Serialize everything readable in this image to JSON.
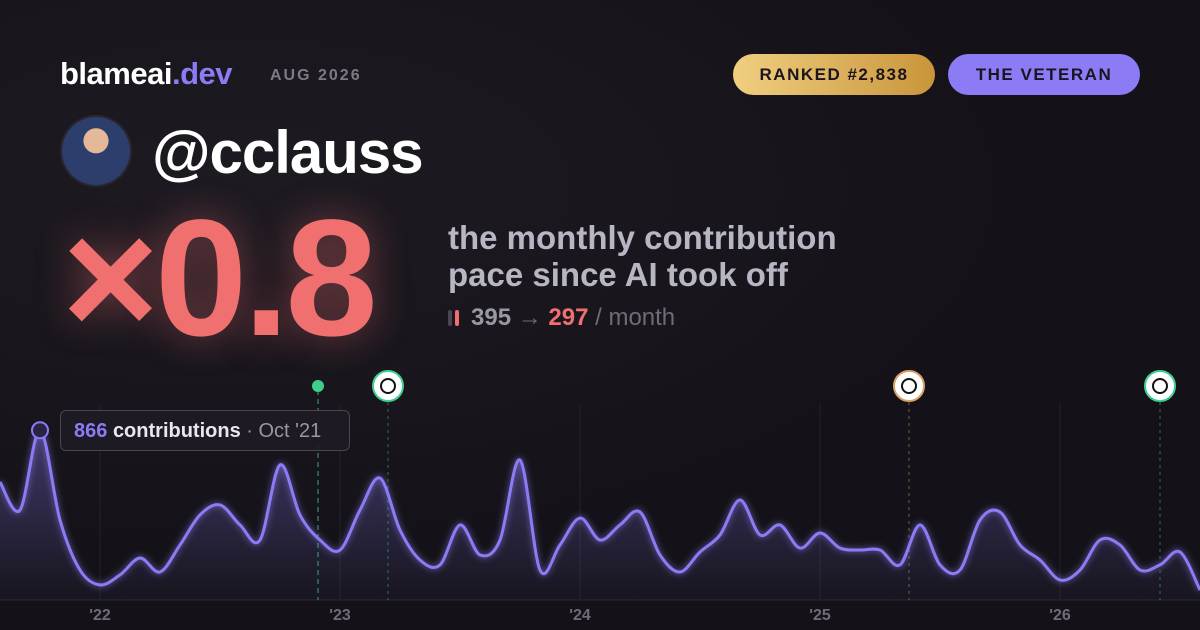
{
  "header": {
    "brand": "blameai",
    "brand_tld": ".dev",
    "date": "AUG 2026",
    "rank_badge": "RANKED #2,838",
    "title_badge": "THE VETERAN"
  },
  "profile": {
    "handle": "@cclauss"
  },
  "headline": {
    "multiplier": "×0.8",
    "caption_lines": [
      "the monthly contribution",
      "pace since AI took off"
    ],
    "before": "395",
    "arrow": "→",
    "after": "297",
    "unit": "/ month"
  },
  "tooltip": {
    "unit": "contributions",
    "separator": "·",
    "date": "Oct '21"
  },
  "chart_data": {
    "type": "area",
    "color": "#8b7cf6",
    "categories": [
      null,
      null,
      null,
      null,
      null,
      null,
      null,
      null,
      null,
      null,
      null,
      null,
      null,
      null,
      null,
      null,
      null,
      null,
      null,
      null,
      null,
      null,
      null,
      null,
      null,
      null,
      null,
      null,
      null,
      null,
      null,
      null,
      null,
      null,
      null,
      null,
      null,
      null,
      null,
      null,
      null,
      null,
      null,
      null,
      null,
      null,
      null,
      null,
      null,
      null,
      null,
      null,
      null,
      null,
      null,
      null,
      null,
      null,
      null,
      null,
      null
    ],
    "series": [
      {
        "name": "contributions",
        "color": "#8b7cf6",
        "values": [
          602,
          459,
          866,
          408,
          153,
          77,
          128,
          214,
          143,
          281,
          434,
          485,
          383,
          306,
          689,
          434,
          306,
          255,
          459,
          622,
          357,
          204,
          179,
          383,
          230,
          306,
          714,
          153,
          281,
          418,
          306,
          383,
          449,
          230,
          143,
          245,
          332,
          510,
          332,
          383,
          265,
          342,
          265,
          255,
          255,
          179,
          383,
          179,
          153,
          408,
          449,
          281,
          204,
          102,
          153,
          306,
          281,
          153,
          179,
          245,
          51
        ]
      }
    ],
    "xlim": [
      0,
      60
    ],
    "ylim": [
      0,
      1000
    ],
    "xticks": [
      {
        "value": 5,
        "label": "'22"
      },
      {
        "value": 17,
        "label": "'23"
      },
      {
        "value": 29,
        "label": "'24"
      },
      {
        "value": 41,
        "label": "'25"
      },
      {
        "value": 53,
        "label": "'26"
      }
    ],
    "events": [
      {
        "x": 15.9,
        "color": "#3ecf8e"
      },
      {
        "x": 19.4,
        "color": "#3ecf8e"
      },
      {
        "x": 45.45,
        "color": "#d9a066"
      },
      {
        "x": 58,
        "color": "#3ecf8e"
      }
    ],
    "grid": true
  }
}
